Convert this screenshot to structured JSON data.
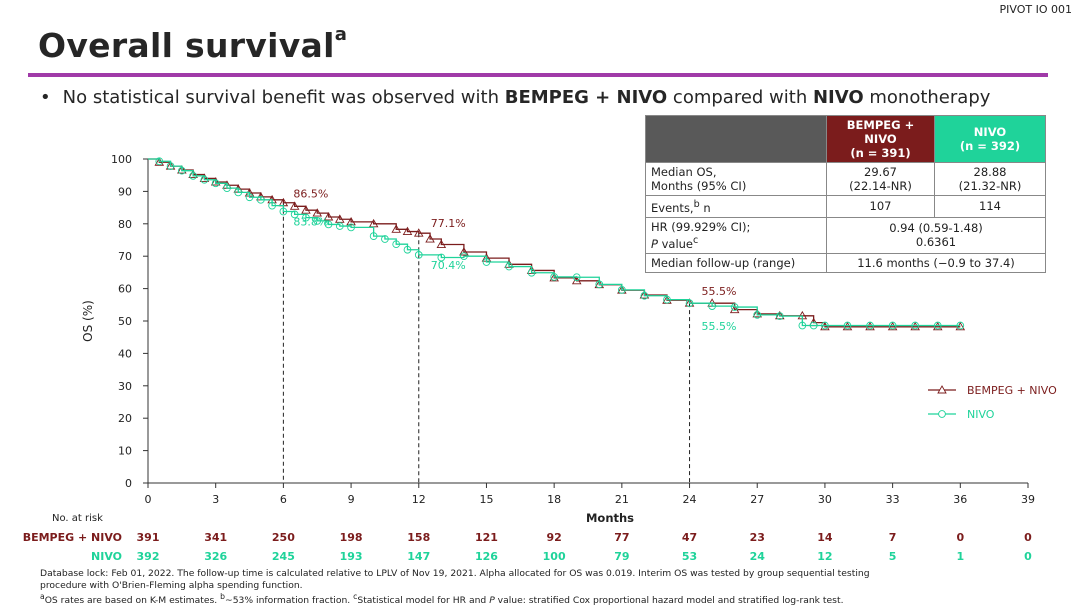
{
  "study_id": "PIVOT IO 001",
  "title": "Overall survival",
  "title_sup": "a",
  "bullet": {
    "prefix": "No statistical survival benefit was observed with ",
    "arm1": "BEMPEG + NIVO",
    "middle": " compared with ",
    "arm2": "NIVO",
    "suffix": " monotherapy"
  },
  "table": {
    "col1_header_l1": "BEMPEG + NIVO",
    "col1_header_l2": "(n = 391)",
    "col2_header_l1": "NIVO",
    "col2_header_l2": "(n = 392)",
    "median_os_label_l1": "Median OS,",
    "median_os_label_l2": "Months (95% CI)",
    "median_os_bempeg_l1": "29.67",
    "median_os_bempeg_l2": "(22.14-NR)",
    "median_os_nivo_l1": "28.88",
    "median_os_nivo_l2": "(21.32-NR)",
    "events_label": "Events,",
    "events_sup": "b",
    "events_label_suffix": " n",
    "events_bempeg": "107",
    "events_nivo": "114",
    "hr_label_l1": "HR (99.929% CI);",
    "hr_label_l2": "P",
    "hr_label_l2_suffix": " value",
    "hr_label_sup": "c",
    "hr_value_l1": "0.94 (0.59-1.48)",
    "hr_value_l2": "0.6361",
    "followup_label": "Median follow-up (range)",
    "followup_value": "11.6 months (−0.9 to 37.4)"
  },
  "chart_data": {
    "type": "line",
    "ylabel": "OS (%)",
    "xlabel": "Months",
    "xlim": [
      0,
      39
    ],
    "ylim": [
      0,
      100
    ],
    "x_ticks": [
      0,
      3,
      6,
      9,
      12,
      15,
      18,
      21,
      24,
      27,
      30,
      33,
      36,
      39
    ],
    "y_ticks": [
      0,
      10,
      20,
      30,
      40,
      50,
      60,
      70,
      80,
      90,
      100
    ],
    "landmarks": [
      6,
      12,
      24
    ],
    "series": [
      {
        "name": "BEMPEG + NIVO",
        "color": "#7b1c1c",
        "marker": "triangle",
        "x": [
          0,
          0.5,
          1,
          1.5,
          2,
          2.5,
          3,
          3.5,
          4,
          4.5,
          5,
          5.5,
          6,
          6.5,
          7,
          7.5,
          8,
          8.5,
          9,
          10,
          11,
          11.5,
          12,
          12.5,
          13,
          14,
          15,
          16,
          17,
          18,
          19,
          20,
          21,
          22,
          23,
          24,
          25,
          26,
          27,
          28,
          29,
          29.5,
          30,
          31,
          32,
          33,
          34,
          35,
          36
        ],
        "y": [
          100,
          99,
          97.8,
          96.6,
          95.2,
          94,
          92.9,
          91.9,
          90.7,
          89.5,
          88.3,
          87.4,
          86.5,
          85.4,
          84.2,
          83.3,
          82.1,
          81.4,
          80.6,
          80,
          78.3,
          77.6,
          77.1,
          75.3,
          73.6,
          71.3,
          69.4,
          67.5,
          65.6,
          63.3,
          62.4,
          61.2,
          59.5,
          58,
          56.4,
          55.5,
          55.5,
          53.5,
          52.2,
          51.6,
          51.6,
          49.5,
          48.2,
          48.2,
          48.2,
          48.2,
          48.2,
          48.2,
          48.2
        ]
      },
      {
        "name": "NIVO",
        "color": "#1fd39a",
        "marker": "circle",
        "x": [
          0,
          0.5,
          1,
          1.5,
          2,
          2.5,
          3,
          3.5,
          4,
          4.5,
          5,
          5.5,
          6,
          6.5,
          7,
          7.5,
          8,
          8.5,
          9,
          10,
          10.5,
          11,
          11.5,
          12,
          13,
          14,
          15,
          16,
          17,
          18,
          19,
          20,
          21,
          22,
          23,
          24,
          25,
          26,
          27,
          28,
          29,
          29.5,
          30,
          31,
          32,
          33,
          34,
          35,
          36
        ],
        "y": [
          100,
          99.3,
          97.8,
          96.4,
          94.8,
          93.6,
          92.5,
          91,
          89.7,
          88.2,
          87.4,
          85.6,
          83.8,
          82.9,
          81.9,
          80.9,
          79.8,
          79.3,
          78.9,
          76.2,
          75.3,
          73.7,
          72,
          70.4,
          69.6,
          70,
          68.2,
          66.8,
          64.9,
          63.6,
          63.5,
          61.3,
          59.6,
          57.8,
          56.6,
          55.5,
          54.6,
          54.3,
          51.9,
          51.5,
          48.6,
          48.6,
          48.6,
          48.6,
          48.6,
          48.6,
          48.6,
          48.6,
          48.6
        ]
      }
    ],
    "annotations": [
      {
        "text": "86.5%",
        "series": "BEMPEG + NIVO"
      },
      {
        "text": "83.8%",
        "series": "NIVO"
      },
      {
        "text": "77.1%",
        "series": "BEMPEG + NIVO"
      },
      {
        "text": "70.4%",
        "series": "NIVO"
      },
      {
        "text": "55.5%",
        "series": "BEMPEG + NIVO"
      },
      {
        "text": "55.5%",
        "series": "NIVO"
      }
    ],
    "risk_table": {
      "title": "No. at risk",
      "times": [
        0,
        3,
        6,
        9,
        12,
        15,
        18,
        21,
        24,
        27,
        30,
        33,
        36,
        39
      ],
      "rows": [
        {
          "label": "BEMPEG + NIVO",
          "color": "#7b1c1c",
          "values": [
            "391",
            "341",
            "250",
            "198",
            "158",
            "121",
            "92",
            "77",
            "47",
            "23",
            "14",
            "7",
            "0",
            "0"
          ]
        },
        {
          "label": "NIVO",
          "color": "#1fd39a",
          "values": [
            "392",
            "326",
            "245",
            "193",
            "147",
            "126",
            "100",
            "79",
            "53",
            "24",
            "12",
            "5",
            "1",
            "0"
          ]
        }
      ]
    },
    "legend_position": "right"
  },
  "footnotes": {
    "line1": "Database lock: Feb 01, 2022. The follow-up time is calculated relative to LPLV of Nov 19, 2021. Alpha allocated for OS was 0.019. Interim OS was tested by group sequential testing",
    "line2": "procedure with O'Brien-Fleming alpha spending function.",
    "sup_a": "a",
    "line3a": "OS rates are based on K-M estimates. ",
    "sup_b": "b",
    "line3b": "~53% information fraction. ",
    "sup_c": "c",
    "line3c": "Statistical model for HR and ",
    "line3d": "P",
    "line3e": " value: stratified Cox proportional hazard model and stratified log-rank test."
  }
}
